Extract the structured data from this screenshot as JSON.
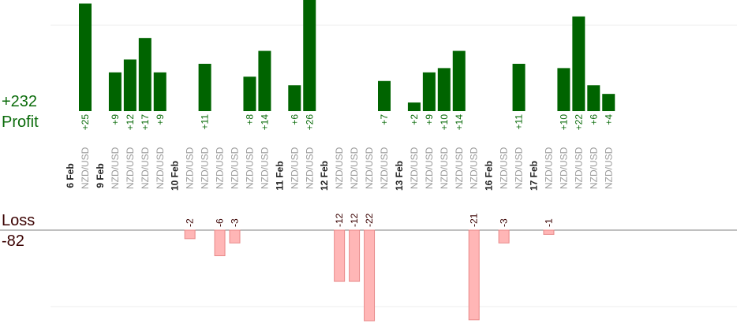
{
  "chart_data": {
    "type": "bar",
    "title": "",
    "xlabel": "",
    "ylabel": "",
    "profit": {
      "label": "Profit",
      "total": "+232",
      "color": "#006400"
    },
    "loss": {
      "label": "Loss",
      "total": "-82",
      "color": "#ffb6b6"
    },
    "pair": "NZD/USD",
    "groups": [
      {
        "date": "6 Feb",
        "trades": [
          25
        ]
      },
      {
        "date": "9 Feb",
        "trades": [
          9,
          12,
          17,
          9
        ]
      },
      {
        "date": "10 Feb",
        "trades": [
          -2,
          11,
          -6,
          -3,
          8,
          14
        ]
      },
      {
        "date": "11 Feb",
        "trades": [
          6,
          26
        ]
      },
      {
        "date": "12 Feb",
        "trades": [
          -12,
          -12,
          -22,
          7
        ]
      },
      {
        "date": "13 Feb",
        "trades": [
          2,
          9,
          10,
          14,
          -21
        ]
      },
      {
        "date": "16 Feb",
        "trades": [
          -3,
          11
        ]
      },
      {
        "date": "17 Feb",
        "trades": [
          -1,
          10,
          22,
          6,
          4
        ]
      }
    ]
  }
}
